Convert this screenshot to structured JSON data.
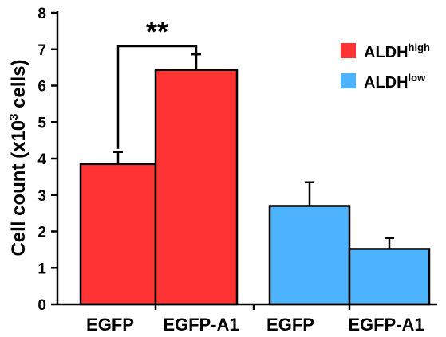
{
  "chart_data": {
    "type": "bar",
    "ylabel": "Cell count (x10",
    "ylabel_sup": "3",
    "ylabel_tail": " cells)",
    "ylim": [
      0,
      8
    ],
    "yticks": [
      "0",
      "1",
      "2",
      "3",
      "4",
      "5",
      "6",
      "7",
      "8"
    ],
    "categories": [
      "EGFP",
      "EGFP-A1",
      "EGFP",
      "EGFP-A1"
    ],
    "grid": false,
    "legend_position": "top-right",
    "series": [
      {
        "name_base": "ALDH",
        "name_sup": "high",
        "color": "#ff3333",
        "bars": [
          {
            "category": "EGFP",
            "value": 3.85,
            "error": 0.33
          },
          {
            "category": "EGFP-A1",
            "value": 6.43,
            "error": 0.43
          }
        ]
      },
      {
        "name_base": "ALDH",
        "name_sup": "low",
        "color": "#4db3ff",
        "bars": [
          {
            "category": "EGFP",
            "value": 2.7,
            "error": 0.65
          },
          {
            "category": "EGFP-A1",
            "value": 1.52,
            "error": 0.3
          }
        ]
      }
    ],
    "annotations": [
      {
        "text": "**",
        "between": [
          "EGFP",
          "EGFP-A1"
        ],
        "group": "ALDH high"
      }
    ]
  }
}
